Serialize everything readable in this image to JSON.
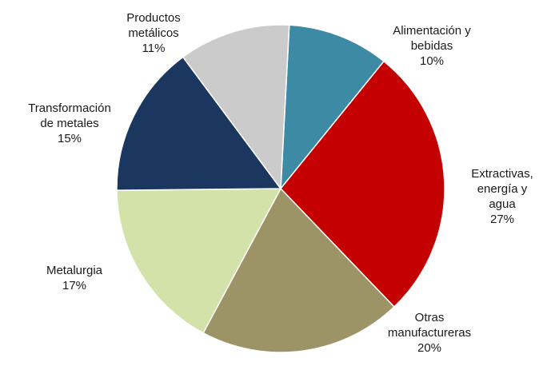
{
  "chart_data": {
    "type": "pie",
    "title": "",
    "start_angle_deg": 3,
    "direction": "clockwise",
    "slices": [
      {
        "label_lines": [
          "Alimentación y",
          "bebidas"
        ],
        "pct_label": "10%",
        "value": 10,
        "color": "#3d8aa5"
      },
      {
        "label_lines": [
          "Extractivas,",
          "energía y",
          "agua"
        ],
        "pct_label": "27%",
        "value": 27,
        "color": "#c40000"
      },
      {
        "label_lines": [
          "Otras",
          "manufactureras"
        ],
        "pct_label": "20%",
        "value": 20,
        "color": "#9c9367"
      },
      {
        "label_lines": [
          "Metalurgia"
        ],
        "pct_label": "17%",
        "value": 17,
        "color": "#d3e2a8"
      },
      {
        "label_lines": [
          "Transformación",
          "de metales"
        ],
        "pct_label": "15%",
        "value": 15,
        "color": "#1b365f"
      },
      {
        "label_lines": [
          "Productos",
          "metálicos"
        ],
        "pct_label": "11%",
        "value": 11,
        "color": "#cbcbcb"
      }
    ]
  }
}
